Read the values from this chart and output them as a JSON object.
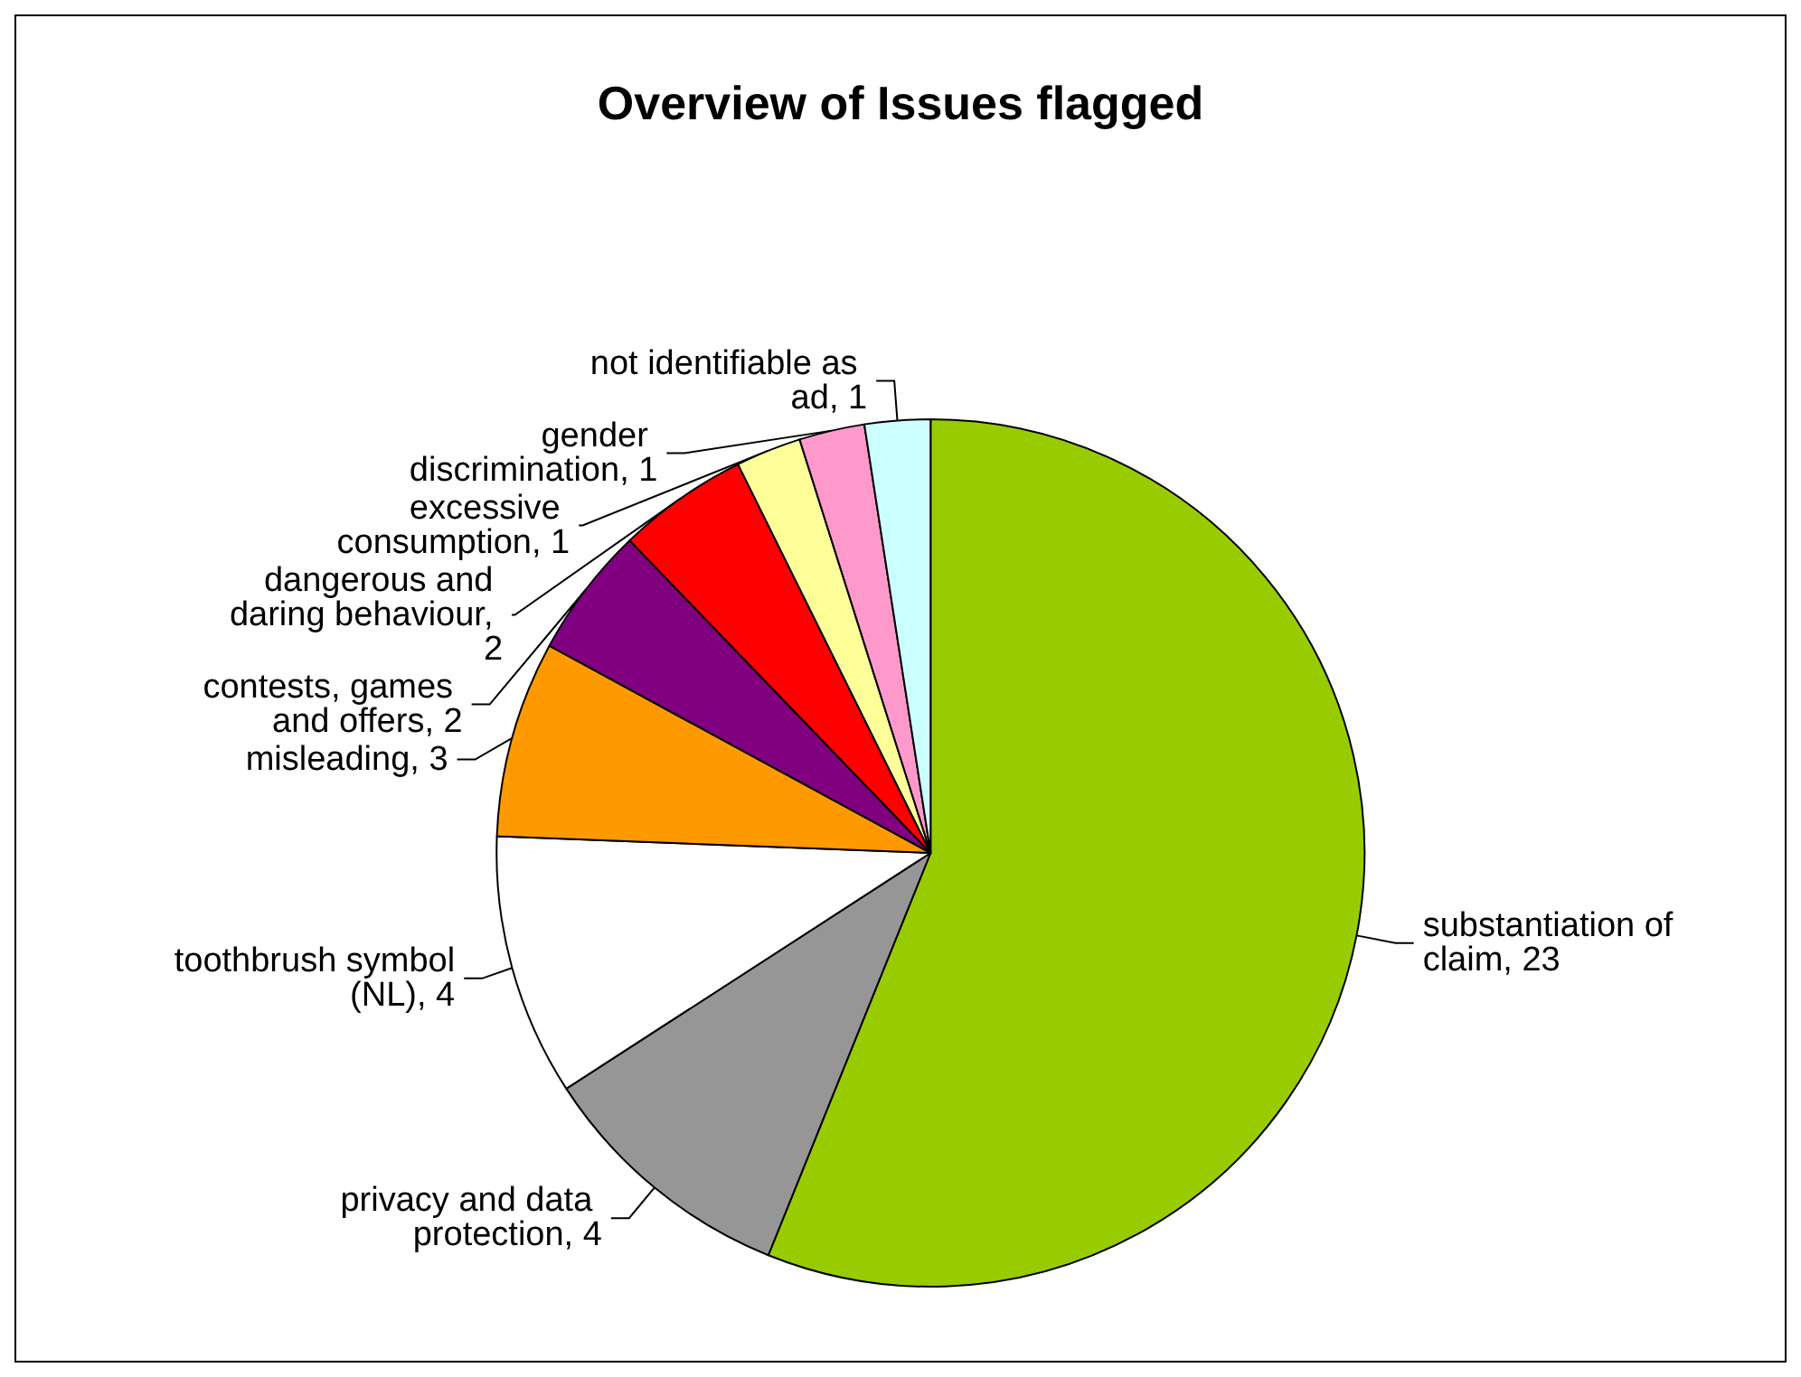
{
  "chart_data": {
    "type": "pie",
    "title": "Overview of Issues flagged",
    "categories": [
      "substantiation of claim",
      "privacy and data protection",
      "toothbrush symbol (NL)",
      "misleading",
      "contests, games and offers",
      "dangerous and daring behaviour",
      "excessive consumption",
      "gender discrimination",
      "not identifiable as ad"
    ],
    "values": [
      23,
      4,
      4,
      3,
      2,
      2,
      1,
      1,
      1
    ],
    "colors": [
      "#99cc00",
      "#969696",
      "#ffffff",
      "#ff9900",
      "#800080",
      "#ff0000",
      "#ffff99",
      "#ff99cc",
      "#ccffff"
    ],
    "value_labels": [
      ", 23",
      ", 4",
      ", 4",
      ", 3",
      ", 2",
      ", 2",
      ", 1",
      ", 1",
      ", 1"
    ],
    "legend": false
  }
}
